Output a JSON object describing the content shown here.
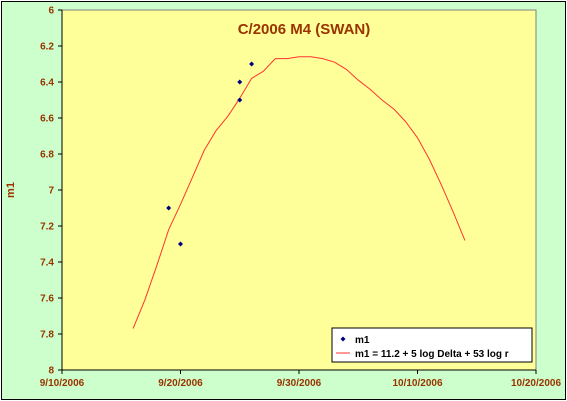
{
  "chart_data": {
    "type": "scatter",
    "title": "C/2006 M4 (SWAN)",
    "xlabel": "",
    "ylabel": "m1",
    "x_ticks": [
      "9/10/2006",
      "9/20/2006",
      "9/30/2006",
      "10/10/2006",
      "10/20/2006"
    ],
    "y_ticks": [
      "6",
      "6.2",
      "6.4",
      "6.6",
      "6.8",
      "7",
      "7.2",
      "7.4",
      "7.6",
      "7.8",
      "8"
    ],
    "xlim": [
      "2006-09-10",
      "2006-10-20"
    ],
    "ylim": [
      6,
      8
    ],
    "y_reversed": true,
    "grid": false,
    "legend_position": "bottom-right",
    "colors": {
      "plot_background": "#ffff99",
      "chart_background": "#ccffcc",
      "observations": "#000080",
      "model": "#ff3333",
      "text": "#993300"
    },
    "series": [
      {
        "name": "m1",
        "kind": "points",
        "points": [
          {
            "x": "2006-09-19",
            "y": 7.1
          },
          {
            "x": "2006-09-20",
            "y": 7.3
          },
          {
            "x": "2006-09-25",
            "y": 6.4
          },
          {
            "x": "2006-09-25",
            "y": 6.5
          },
          {
            "x": "2006-09-26",
            "y": 6.3
          }
        ]
      },
      {
        "name": "m1 = 11.2 + 5 log Delta + 53 log r",
        "kind": "line",
        "points": [
          {
            "x": "2006-09-16",
            "y": 7.77
          },
          {
            "x": "2006-09-17",
            "y": 7.61
          },
          {
            "x": "2006-09-18",
            "y": 7.42
          },
          {
            "x": "2006-09-19",
            "y": 7.22
          },
          {
            "x": "2006-09-20",
            "y": 7.08
          },
          {
            "x": "2006-09-21",
            "y": 6.93
          },
          {
            "x": "2006-09-22",
            "y": 6.78
          },
          {
            "x": "2006-09-23",
            "y": 6.67
          },
          {
            "x": "2006-09-24",
            "y": 6.59
          },
          {
            "x": "2006-09-25",
            "y": 6.49
          },
          {
            "x": "2006-09-26",
            "y": 6.38
          },
          {
            "x": "2006-09-27",
            "y": 6.34
          },
          {
            "x": "2006-09-28",
            "y": 6.27
          },
          {
            "x": "2006-09-29",
            "y": 6.27
          },
          {
            "x": "2006-09-30",
            "y": 6.26
          },
          {
            "x": "2006-10-01",
            "y": 6.26
          },
          {
            "x": "2006-10-02",
            "y": 6.27
          },
          {
            "x": "2006-10-03",
            "y": 6.29
          },
          {
            "x": "2006-10-04",
            "y": 6.33
          },
          {
            "x": "2006-10-05",
            "y": 6.39
          },
          {
            "x": "2006-10-06",
            "y": 6.44
          },
          {
            "x": "2006-10-07",
            "y": 6.5
          },
          {
            "x": "2006-10-08",
            "y": 6.55
          },
          {
            "x": "2006-10-09",
            "y": 6.62
          },
          {
            "x": "2006-10-10",
            "y": 6.71
          },
          {
            "x": "2006-10-11",
            "y": 6.83
          },
          {
            "x": "2006-10-12",
            "y": 6.97
          },
          {
            "x": "2006-10-13",
            "y": 7.12
          },
          {
            "x": "2006-10-14",
            "y": 7.28
          }
        ]
      }
    ]
  }
}
